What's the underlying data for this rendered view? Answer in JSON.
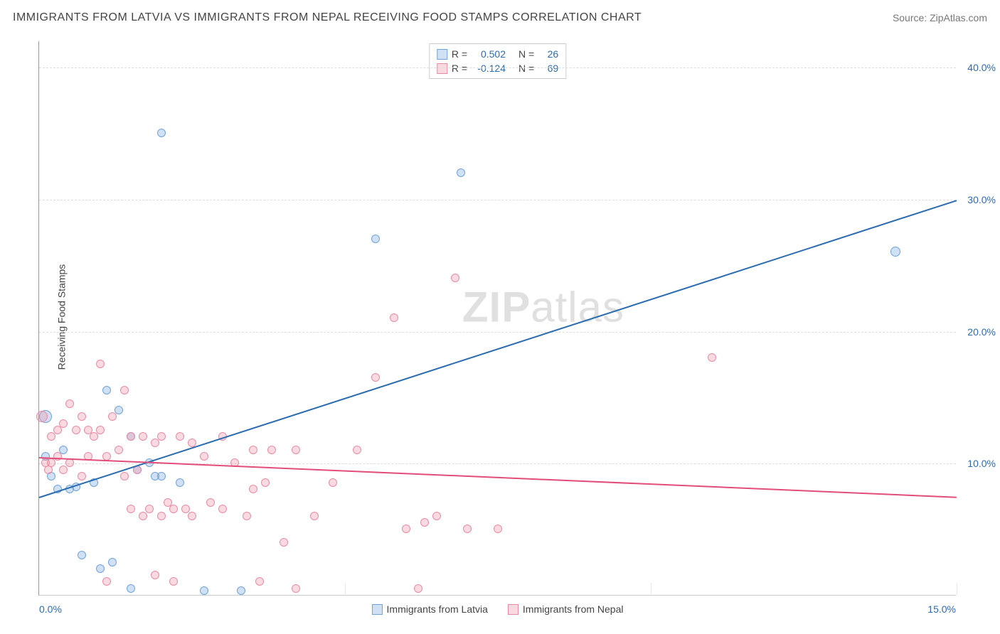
{
  "title": "IMMIGRANTS FROM LATVIA VS IMMIGRANTS FROM NEPAL RECEIVING FOOD STAMPS CORRELATION CHART",
  "source": "Source: ZipAtlas.com",
  "ylabel": "Receiving Food Stamps",
  "watermark_bold": "ZIP",
  "watermark_rest": "atlas",
  "chart": {
    "type": "scatter",
    "xlim": [
      0,
      15
    ],
    "ylim": [
      0,
      42
    ],
    "x_ticks": [
      0,
      5,
      10,
      15
    ],
    "x_tick_labels_shown": {
      "left": "0.0%",
      "right": "15.0%"
    },
    "y_ticks": [
      10,
      20,
      30,
      40
    ],
    "y_tick_labels": [
      "10.0%",
      "20.0%",
      "30.0%",
      "40.0%"
    ],
    "background_color": "#ffffff",
    "grid_color": "#dddddd",
    "axis_color": "#999999",
    "y_label_color": "#2b6cb0",
    "series": [
      {
        "name": "Immigrants from Latvia",
        "color_fill": "rgba(120,170,225,0.35)",
        "color_stroke": "#6fa3d9",
        "line_color": "#2b6cb0",
        "R": "0.502",
        "N": "26",
        "trend": {
          "x1": 0,
          "y1": 7.5,
          "x2": 15,
          "y2": 30
        },
        "points": [
          {
            "x": 0.1,
            "y": 13.5,
            "r": 9
          },
          {
            "x": 0.1,
            "y": 10.5,
            "r": 6
          },
          {
            "x": 0.2,
            "y": 9.0,
            "r": 6
          },
          {
            "x": 0.3,
            "y": 8.0,
            "r": 6
          },
          {
            "x": 0.4,
            "y": 11.0,
            "r": 6
          },
          {
            "x": 0.5,
            "y": 8.0,
            "r": 6
          },
          {
            "x": 0.6,
            "y": 8.2,
            "r": 6
          },
          {
            "x": 0.7,
            "y": 3.0,
            "r": 6
          },
          {
            "x": 0.9,
            "y": 8.5,
            "r": 6
          },
          {
            "x": 1.0,
            "y": 2.0,
            "r": 6
          },
          {
            "x": 1.1,
            "y": 15.5,
            "r": 6
          },
          {
            "x": 1.2,
            "y": 2.5,
            "r": 6
          },
          {
            "x": 1.3,
            "y": 14.0,
            "r": 6
          },
          {
            "x": 1.5,
            "y": 12.0,
            "r": 6
          },
          {
            "x": 1.5,
            "y": 0.5,
            "r": 6
          },
          {
            "x": 1.6,
            "y": 9.5,
            "r": 6
          },
          {
            "x": 1.8,
            "y": 10.0,
            "r": 6
          },
          {
            "x": 1.9,
            "y": 9.0,
            "r": 6
          },
          {
            "x": 2.0,
            "y": 9.0,
            "r": 6
          },
          {
            "x": 2.0,
            "y": 35.0,
            "r": 6
          },
          {
            "x": 2.3,
            "y": 8.5,
            "r": 6
          },
          {
            "x": 2.7,
            "y": 0.3,
            "r": 6
          },
          {
            "x": 3.3,
            "y": 0.3,
            "r": 6
          },
          {
            "x": 5.5,
            "y": 27.0,
            "r": 6
          },
          {
            "x": 6.9,
            "y": 32.0,
            "r": 6
          },
          {
            "x": 14.0,
            "y": 26.0,
            "r": 7
          }
        ]
      },
      {
        "name": "Immigrants from Nepal",
        "color_fill": "rgba(240,150,170,0.35)",
        "color_stroke": "#e88ba4",
        "line_color": "#e24d7a",
        "R": "-0.124",
        "N": "69",
        "trend": {
          "x1": 0,
          "y1": 10.5,
          "x2": 15,
          "y2": 7.5
        },
        "points": [
          {
            "x": 0.05,
            "y": 13.5,
            "r": 8
          },
          {
            "x": 0.1,
            "y": 10.0,
            "r": 6
          },
          {
            "x": 0.15,
            "y": 9.5,
            "r": 6
          },
          {
            "x": 0.2,
            "y": 12.0,
            "r": 6
          },
          {
            "x": 0.2,
            "y": 10.0,
            "r": 6
          },
          {
            "x": 0.3,
            "y": 10.5,
            "r": 6
          },
          {
            "x": 0.3,
            "y": 12.5,
            "r": 6
          },
          {
            "x": 0.4,
            "y": 13.0,
            "r": 6
          },
          {
            "x": 0.4,
            "y": 9.5,
            "r": 6
          },
          {
            "x": 0.5,
            "y": 10.0,
            "r": 6
          },
          {
            "x": 0.5,
            "y": 14.5,
            "r": 6
          },
          {
            "x": 0.6,
            "y": 12.5,
            "r": 6
          },
          {
            "x": 0.7,
            "y": 9.0,
            "r": 6
          },
          {
            "x": 0.7,
            "y": 13.5,
            "r": 6
          },
          {
            "x": 0.8,
            "y": 12.5,
            "r": 6
          },
          {
            "x": 0.8,
            "y": 10.5,
            "r": 6
          },
          {
            "x": 0.9,
            "y": 12.0,
            "r": 6
          },
          {
            "x": 1.0,
            "y": 12.5,
            "r": 6
          },
          {
            "x": 1.0,
            "y": 17.5,
            "r": 6
          },
          {
            "x": 1.1,
            "y": 10.5,
            "r": 6
          },
          {
            "x": 1.1,
            "y": 1.0,
            "r": 6
          },
          {
            "x": 1.2,
            "y": 13.5,
            "r": 6
          },
          {
            "x": 1.3,
            "y": 11.0,
            "r": 6
          },
          {
            "x": 1.4,
            "y": 9.0,
            "r": 6
          },
          {
            "x": 1.4,
            "y": 15.5,
            "r": 6
          },
          {
            "x": 1.5,
            "y": 6.5,
            "r": 6
          },
          {
            "x": 1.5,
            "y": 12.0,
            "r": 6
          },
          {
            "x": 1.6,
            "y": 9.5,
            "r": 6
          },
          {
            "x": 1.7,
            "y": 6.0,
            "r": 6
          },
          {
            "x": 1.7,
            "y": 12.0,
            "r": 6
          },
          {
            "x": 1.8,
            "y": 6.5,
            "r": 6
          },
          {
            "x": 1.9,
            "y": 11.5,
            "r": 6
          },
          {
            "x": 1.9,
            "y": 1.5,
            "r": 6
          },
          {
            "x": 2.0,
            "y": 6.0,
            "r": 6
          },
          {
            "x": 2.0,
            "y": 12.0,
            "r": 6
          },
          {
            "x": 2.1,
            "y": 7.0,
            "r": 6
          },
          {
            "x": 2.2,
            "y": 6.5,
            "r": 6
          },
          {
            "x": 2.2,
            "y": 1.0,
            "r": 6
          },
          {
            "x": 2.3,
            "y": 12.0,
            "r": 6
          },
          {
            "x": 2.4,
            "y": 6.5,
            "r": 6
          },
          {
            "x": 2.5,
            "y": 11.5,
            "r": 6
          },
          {
            "x": 2.5,
            "y": 6.0,
            "r": 6
          },
          {
            "x": 2.7,
            "y": 10.5,
            "r": 6
          },
          {
            "x": 2.8,
            "y": 7.0,
            "r": 6
          },
          {
            "x": 3.0,
            "y": 12.0,
            "r": 6
          },
          {
            "x": 3.0,
            "y": 6.5,
            "r": 6
          },
          {
            "x": 3.2,
            "y": 10.0,
            "r": 6
          },
          {
            "x": 3.4,
            "y": 6.0,
            "r": 6
          },
          {
            "x": 3.5,
            "y": 8.0,
            "r": 6
          },
          {
            "x": 3.5,
            "y": 11.0,
            "r": 6
          },
          {
            "x": 3.6,
            "y": 1.0,
            "r": 6
          },
          {
            "x": 3.7,
            "y": 8.5,
            "r": 6
          },
          {
            "x": 3.8,
            "y": 11.0,
            "r": 6
          },
          {
            "x": 4.0,
            "y": 4.0,
            "r": 6
          },
          {
            "x": 4.2,
            "y": 11.0,
            "r": 6
          },
          {
            "x": 4.2,
            "y": 0.5,
            "r": 6
          },
          {
            "x": 4.5,
            "y": 6.0,
            "r": 6
          },
          {
            "x": 4.8,
            "y": 8.5,
            "r": 6
          },
          {
            "x": 5.2,
            "y": 11.0,
            "r": 6
          },
          {
            "x": 5.5,
            "y": 16.5,
            "r": 6
          },
          {
            "x": 5.8,
            "y": 21.0,
            "r": 6
          },
          {
            "x": 6.0,
            "y": 5.0,
            "r": 6
          },
          {
            "x": 6.2,
            "y": 0.5,
            "r": 6
          },
          {
            "x": 6.3,
            "y": 5.5,
            "r": 6
          },
          {
            "x": 6.5,
            "y": 6.0,
            "r": 6
          },
          {
            "x": 6.8,
            "y": 24.0,
            "r": 6
          },
          {
            "x": 7.0,
            "y": 5.0,
            "r": 6
          },
          {
            "x": 7.5,
            "y": 5.0,
            "r": 6
          },
          {
            "x": 11.0,
            "y": 18.0,
            "r": 6
          }
        ]
      }
    ]
  }
}
